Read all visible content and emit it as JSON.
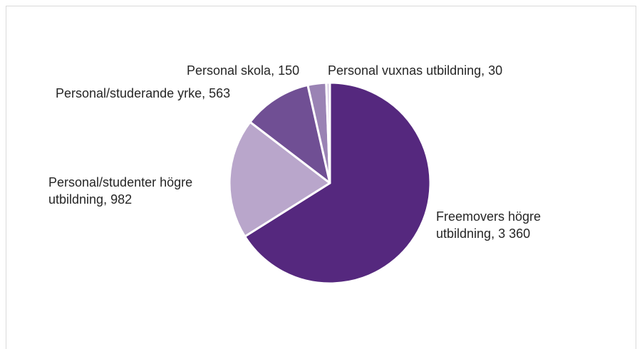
{
  "chart_data": {
    "type": "pie",
    "title": "",
    "slices": [
      {
        "label_lines": [
          "Freemovers högre",
          "utbildning, 3 360"
        ],
        "value": 3360,
        "color": "#55287e"
      },
      {
        "label_lines": [
          "Personal/studenter högre",
          "utbildning, 982"
        ],
        "value": 982,
        "color": "#b9a6cb"
      },
      {
        "label_lines": [
          "Personal/studerande yrke, 563"
        ],
        "value": 563,
        "color": "#704f94"
      },
      {
        "label_lines": [
          "Personal skola, 150"
        ],
        "value": 150,
        "color": "#9a83b4"
      },
      {
        "label_lines": [
          "Personal vuxnas utbildning, 30"
        ],
        "value": 30,
        "color": "#d8cde4"
      }
    ]
  }
}
